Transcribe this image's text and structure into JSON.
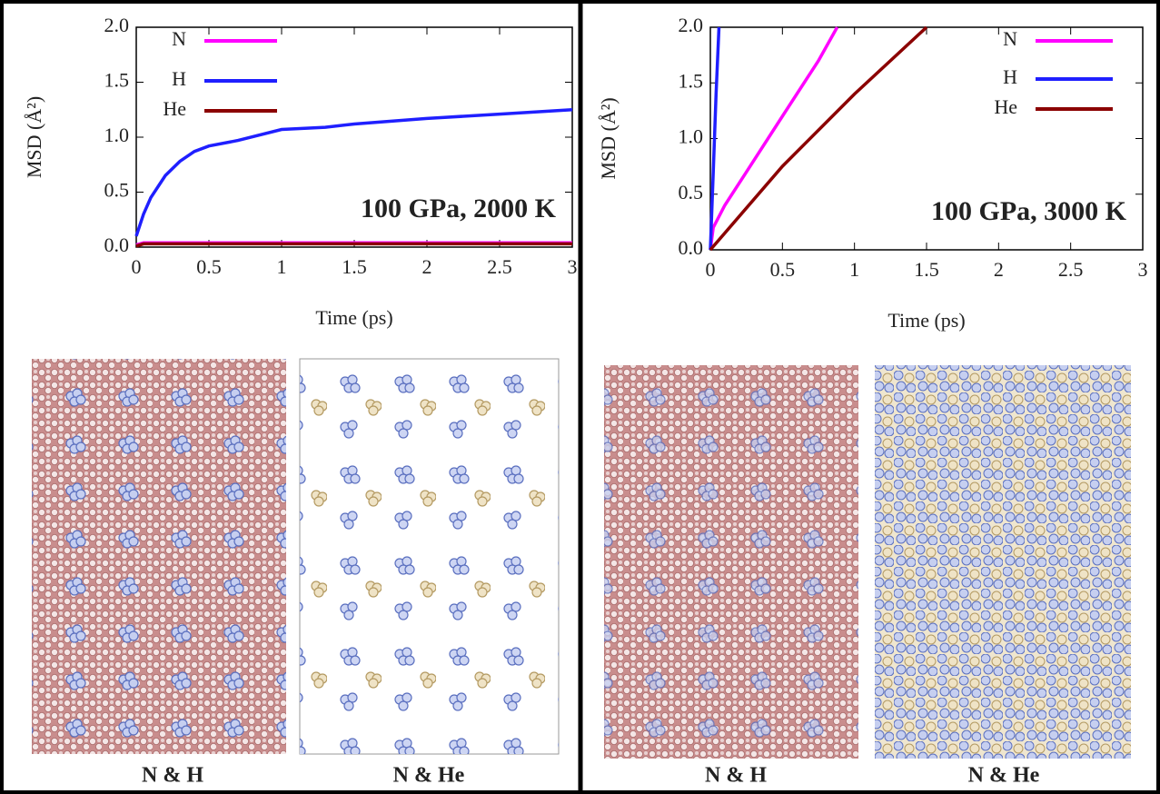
{
  "chart_data": [
    {
      "type": "line",
      "annotation": "100 GPa, 2000 K",
      "x_label": "Time (ps)",
      "y_label": "MSD (Å²)",
      "xlim": [
        0,
        3
      ],
      "ylim": [
        0,
        2
      ],
      "xticks": [
        0,
        0.5,
        1,
        1.5,
        2,
        2.5,
        3
      ],
      "yticks": [
        {
          "value": 0,
          "label": "0.0"
        },
        {
          "value": 0.5,
          "label": "0.5"
        },
        {
          "value": 1,
          "label": "1.0"
        },
        {
          "value": 1.5,
          "label": "1.5"
        },
        {
          "value": 2,
          "label": "2.0"
        }
      ],
      "legend": "top-left",
      "series": [
        {
          "name": "N",
          "color": "#ff00ff",
          "x": [
            0,
            0.05,
            0.5,
            1,
            1.5,
            2,
            2.5,
            3
          ],
          "values": [
            0.02,
            0.04,
            0.04,
            0.04,
            0.04,
            0.04,
            0.04,
            0.04
          ]
        },
        {
          "name": "H",
          "color": "#1f1fff",
          "x": [
            0,
            0.05,
            0.1,
            0.2,
            0.3,
            0.4,
            0.5,
            0.7,
            1.0,
            1.3,
            1.5,
            2.0,
            2.5,
            3.0
          ],
          "values": [
            0.1,
            0.3,
            0.45,
            0.65,
            0.78,
            0.87,
            0.92,
            0.97,
            1.07,
            1.09,
            1.12,
            1.17,
            1.21,
            1.25
          ]
        },
        {
          "name": "He",
          "color": "#8b0000",
          "x": [
            0,
            0.05,
            0.5,
            1,
            1.5,
            2,
            2.5,
            3
          ],
          "values": [
            0.01,
            0.03,
            0.03,
            0.03,
            0.03,
            0.03,
            0.03,
            0.03
          ]
        }
      ],
      "snapshot_labels": [
        "N & H",
        "N & He"
      ]
    },
    {
      "type": "line",
      "annotation": "100 GPa, 3000 K",
      "x_label": "Time (ps)",
      "y_label": "MSD (Å²)",
      "xlim": [
        0,
        3
      ],
      "ylim": [
        0,
        2
      ],
      "xticks": [
        0,
        0.5,
        1,
        1.5,
        2,
        2.5,
        3
      ],
      "yticks": [
        {
          "value": 0,
          "label": "0.0"
        },
        {
          "value": 0.5,
          "label": "0.5"
        },
        {
          "value": 1,
          "label": "1.0"
        },
        {
          "value": 1.5,
          "label": "1.5"
        },
        {
          "value": 2,
          "label": "2.0"
        }
      ],
      "legend": "top-right",
      "series": [
        {
          "name": "N",
          "color": "#ff00ff",
          "x": [
            0,
            0.02,
            0.1,
            0.25,
            0.5,
            0.75,
            0.88
          ],
          "values": [
            0,
            0.2,
            0.4,
            0.7,
            1.2,
            1.7,
            2.0
          ]
        },
        {
          "name": "H",
          "color": "#1f1fff",
          "x": [
            0,
            0.02,
            0.04,
            0.06
          ],
          "values": [
            0,
            0.7,
            1.4,
            2.0
          ]
        },
        {
          "name": "He",
          "color": "#8b0000",
          "x": [
            0,
            0.5,
            1.0,
            1.5
          ],
          "values": [
            0,
            0.75,
            1.4,
            2.0
          ]
        }
      ],
      "snapshot_labels": [
        "N & H",
        "N & He"
      ]
    }
  ]
}
